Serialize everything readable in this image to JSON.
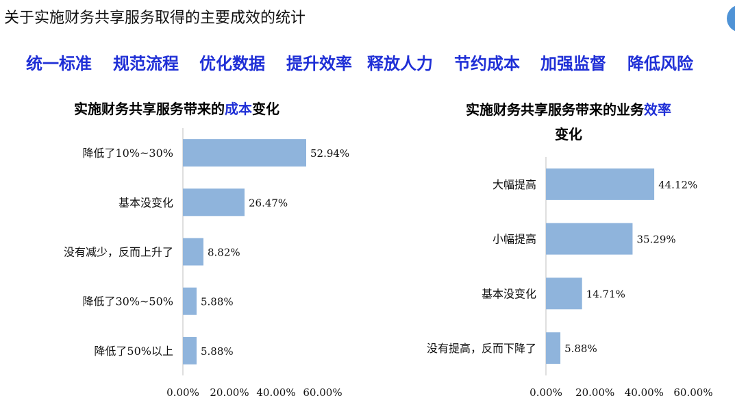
{
  "page": {
    "title": "关于实施财务共享服务取得的主要成效的统计",
    "accent_color": "#1f2fd6",
    "bar_color": "#8fb4dc"
  },
  "keywords": [
    "统一标准",
    "规范流程",
    "优化数据",
    "提升效率",
    "释放人力",
    "节约成本",
    "加强监督",
    "降低风险"
  ],
  "charts": {
    "left": {
      "title_before": "实施财务共享服务带来的",
      "title_highlight": "成本",
      "title_after": "变化"
    },
    "right": {
      "title_before": "实施财务共享服务带来的业务",
      "title_highlight": "效率",
      "title_line2": "变化"
    }
  },
  "chart_data": [
    {
      "type": "bar",
      "orientation": "horizontal",
      "title": "实施财务共享服务带来的成本变化",
      "categories": [
        "降低了10%~30%",
        "基本没变化",
        "没有减少，反而上升了",
        "降低了30%~50%",
        "降低了50%以上"
      ],
      "values": [
        52.94,
        26.47,
        8.82,
        5.88,
        5.88
      ],
      "value_labels": [
        "52.94%",
        "26.47%",
        "8.82%",
        "5.88%",
        "5.88%"
      ],
      "xlim": [
        0,
        60
      ],
      "xticks": [
        "0.00%",
        "20.00%",
        "40.00%",
        "60.00%"
      ],
      "grid": false
    },
    {
      "type": "bar",
      "orientation": "horizontal",
      "title": "实施财务共享服务带来的业务效率变化",
      "categories": [
        "大幅提高",
        "小幅提高",
        "基本没变化",
        "没有提高，反而下降了"
      ],
      "values": [
        44.12,
        35.29,
        14.71,
        5.88
      ],
      "value_labels": [
        "44.12%",
        "35.29%",
        "14.71%",
        "5.88%"
      ],
      "xlim": [
        0,
        60
      ],
      "xticks": [
        "0.00%",
        "20.00%",
        "40.00%",
        "60.00%"
      ],
      "grid": false
    }
  ]
}
